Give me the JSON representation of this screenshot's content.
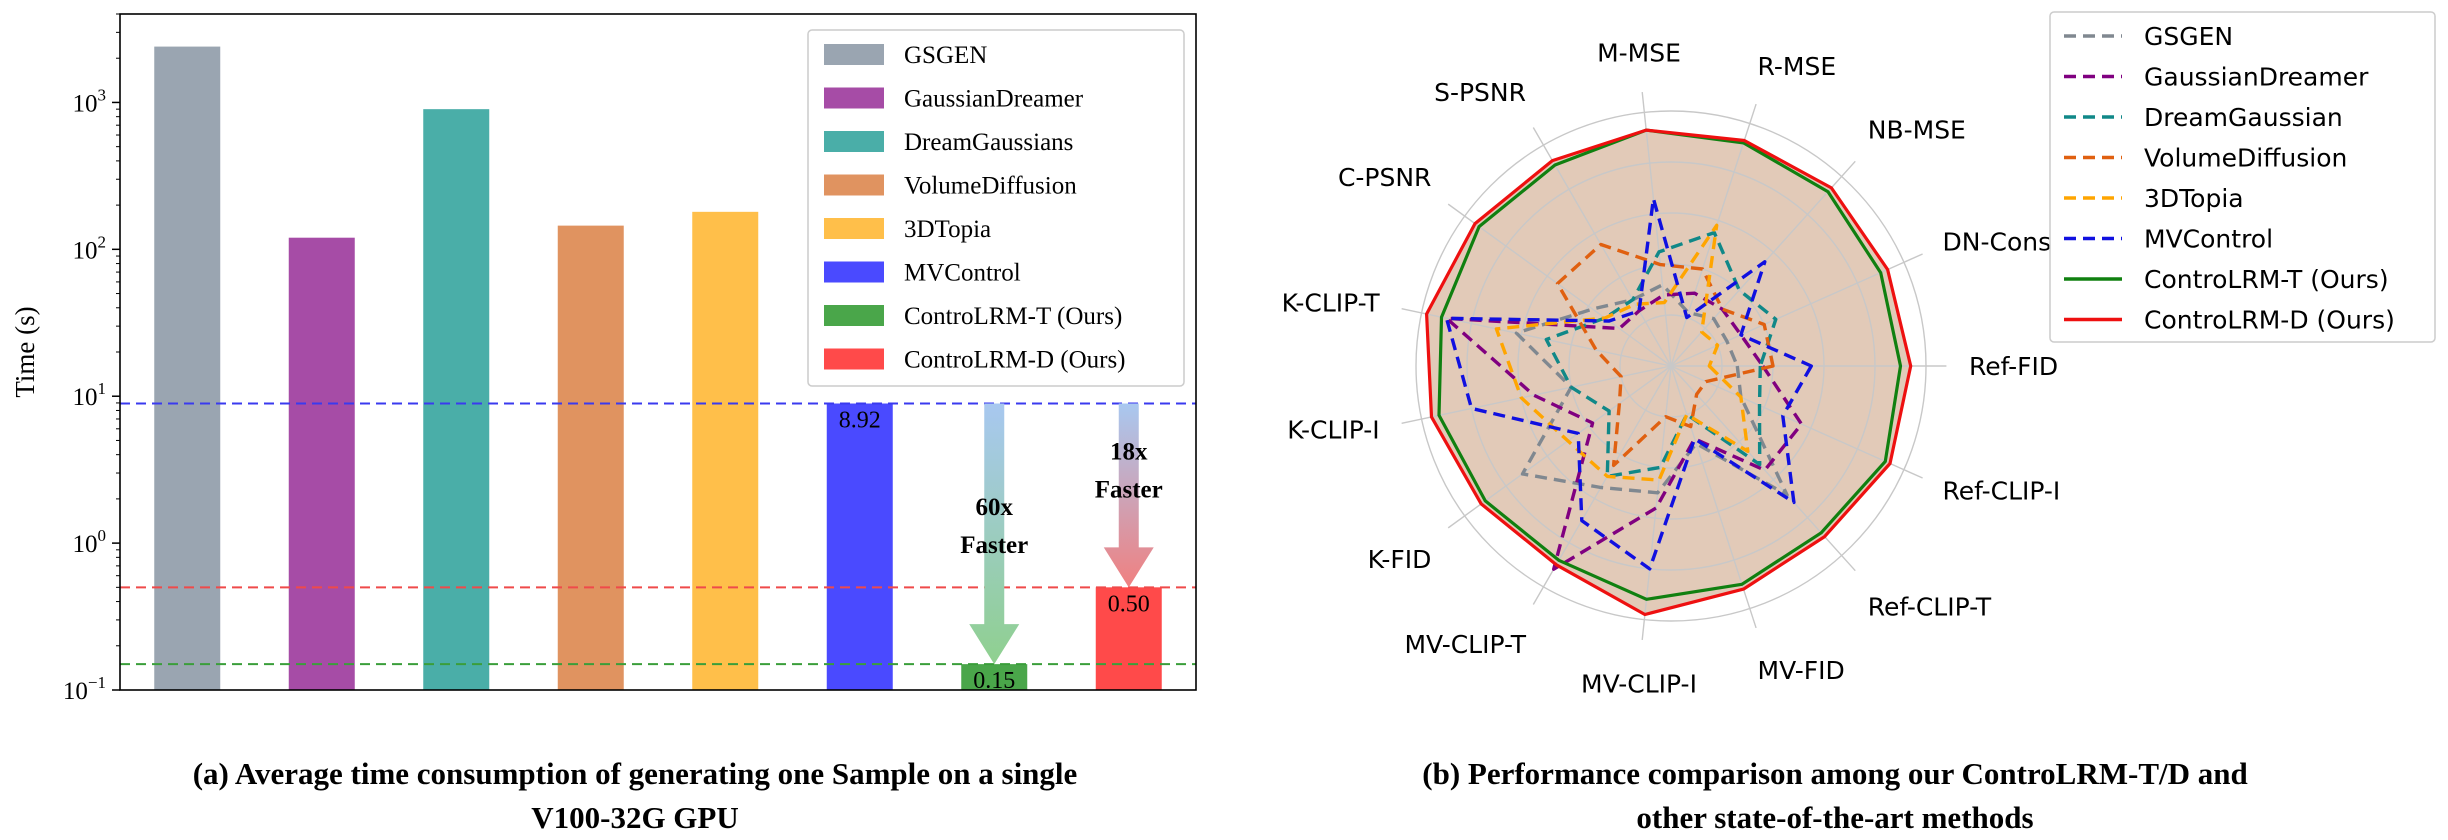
{
  "chart_data": [
    {
      "type": "bar",
      "yscale": "log",
      "ylabel": "Time (s)",
      "ylim": [
        0.1,
        4000
      ],
      "yticks": [
        {
          "value": 0.1,
          "base": "10",
          "exp": "−1"
        },
        {
          "value": 1,
          "base": "10",
          "exp": "0"
        },
        {
          "value": 10,
          "base": "10",
          "exp": "1"
        },
        {
          "value": 100,
          "base": "10",
          "exp": "2"
        },
        {
          "value": 1000,
          "base": "10",
          "exp": "3"
        }
      ],
      "categories": [
        "GSGEN",
        "GaussianDreamer",
        "DreamGaussians",
        "VolumeDiffusion",
        "3DTopia",
        "MVControl",
        "ControLRM-T (Ours)",
        "ControLRM-D (Ours)"
      ],
      "values": [
        2400,
        120,
        900,
        145,
        180,
        8.92,
        0.15,
        0.5
      ],
      "colors": [
        "#9aa5b1",
        "#a64ca6",
        "#4aaea8",
        "#e09360",
        "#ffbf4a",
        "#4a4aff",
        "#4aa64a",
        "#ff4a4a"
      ],
      "data_labels": [
        "",
        "",
        "",
        "",
        "",
        "8.92",
        "0.15",
        "0.50"
      ],
      "reference_lines": [
        {
          "value": 8.92,
          "color": "#3a3aef"
        },
        {
          "value": 0.5,
          "color": "#ef4a4a"
        },
        {
          "value": 0.15,
          "color": "#3a9e3a"
        }
      ],
      "annotations": [
        {
          "text": [
            "60x",
            "Faster"
          ],
          "from": 8.92,
          "to": 0.15,
          "bar": 6,
          "color_top": "#a8c8f0",
          "color_bottom": "#8fd08f"
        },
        {
          "text": [
            "18x",
            "Faster"
          ],
          "from": 8.92,
          "to": 0.5,
          "bar": 7,
          "color_top": "#a8c8f0",
          "color_bottom": "#f08080"
        }
      ],
      "legend": {
        "position": "top-right"
      },
      "caption": [
        "(a) Average time consumption of generating one Sample on a single",
        "V100-32G GPU"
      ]
    },
    {
      "type": "radar",
      "axes": [
        "Ref-FID",
        "Ref-CLIP-I",
        "Ref-CLIP-T",
        "MV-FID",
        "MV-CLIP-I",
        "MV-CLIP-T",
        "K-FID",
        "K-CLIP-I",
        "K-CLIP-T",
        "C-PSNR",
        "S-PSNR",
        "M-MSE",
        "R-MSE",
        "NB-MSE",
        "DN-Consistency"
      ],
      "rmax": 1.0,
      "grid_levels": [
        0.2,
        0.4,
        0.6,
        0.8,
        1.0
      ],
      "series": [
        {
          "name": "GSGEN",
          "color": "#808890",
          "style": "dashed",
          "values": [
            0.26,
            0.3,
            0.68,
            0.32,
            0.5,
            0.55,
            0.72,
            0.4,
            0.62,
            0.38,
            0.3,
            0.32,
            0.22,
            0.25,
            0.24
          ]
        },
        {
          "name": "GaussianDreamer",
          "color": "#800080",
          "style": "dashed",
          "values": [
            0.36,
            0.56,
            0.55,
            0.3,
            0.56,
            0.92,
            0.38,
            0.55,
            0.9,
            0.25,
            0.25,
            0.28,
            0.3,
            0.3,
            0.3
          ]
        },
        {
          "name": "DreamGaussian",
          "color": "#108888",
          "style": "dashed",
          "values": [
            0.35,
            0.38,
            0.52,
            0.2,
            0.4,
            0.5,
            0.3,
            0.4,
            0.5,
            0.32,
            0.3,
            0.45,
            0.55,
            0.4,
            0.45
          ]
        },
        {
          "name": "VolumeDiffusion",
          "color": "#e06010",
          "style": "dashed",
          "values": [
            0.4,
            0.15,
            0.15,
            0.25,
            0.2,
            0.45,
            0.25,
            0.2,
            0.3,
            0.55,
            0.55,
            0.4,
            0.4,
            0.3,
            0.4
          ]
        },
        {
          "name": "3DTopia",
          "color": "#ffa500",
          "style": "dashed",
          "values": [
            0.15,
            0.3,
            0.45,
            0.2,
            0.45,
            0.5,
            0.5,
            0.6,
            0.7,
            0.32,
            0.28,
            0.25,
            0.58,
            0.18,
            0.2
          ]
        },
        {
          "name": "MVControl",
          "color": "#1010e0",
          "style": "dashed",
          "values": [
            0.55,
            0.48,
            0.72,
            0.3,
            0.8,
            0.7,
            0.45,
            0.8,
            0.9,
            0.3,
            0.25,
            0.66,
            0.2,
            0.55,
            0.3
          ]
        },
        {
          "name": "ControLRM-T (Ours)",
          "color": "#108010",
          "style": "solid",
          "values": [
            0.9,
            0.92,
            0.88,
            0.9,
            0.92,
            0.88,
            0.9,
            0.93,
            0.92,
            0.93,
            0.91,
            0.93,
            0.92,
            0.92,
            0.9
          ]
        },
        {
          "name": "ControLRM-D (Ours)",
          "color": "#ee1010",
          "style": "solid",
          "values": [
            0.94,
            0.94,
            0.9,
            0.92,
            0.98,
            0.9,
            0.92,
            0.96,
            0.98,
            0.95,
            0.93,
            0.93,
            0.93,
            0.94,
            0.93
          ]
        }
      ],
      "fill_series": "ControLRM-D (Ours)",
      "fill_color": "#d8b8a0",
      "legend": {
        "position": "top-right"
      },
      "caption": [
        "(b) Performance comparison among our ControLRM-T/D and",
        "other state-of-the-art methods"
      ]
    }
  ]
}
